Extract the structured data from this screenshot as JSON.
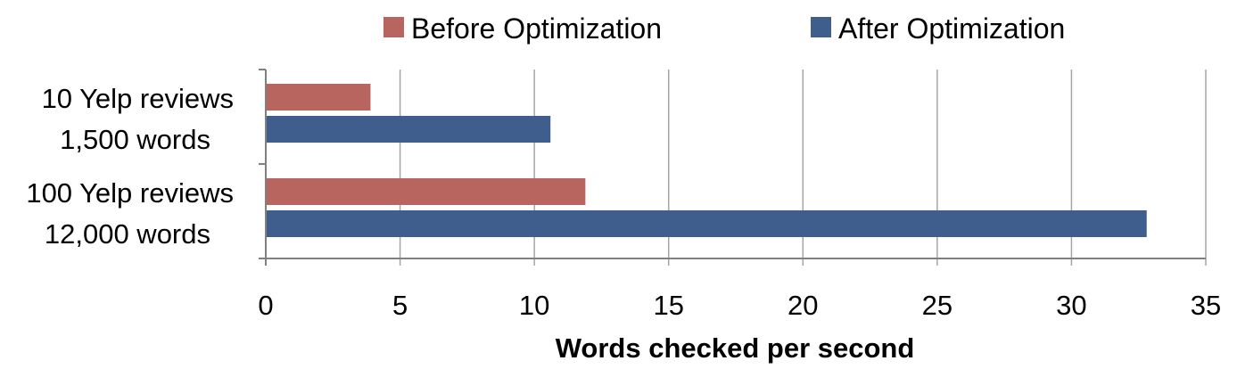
{
  "chart_data": {
    "type": "bar",
    "orientation": "horizontal",
    "title": "",
    "xlabel": "Words checked per second",
    "ylabel": "",
    "categories": [
      [
        "10 Yelp reviews",
        "1,500 words"
      ],
      [
        "100 Yelp reviews",
        "12,000 words"
      ]
    ],
    "series": [
      {
        "name": "Before Optimization",
        "color": "#b9655f",
        "values": [
          3.9,
          11.9
        ]
      },
      {
        "name": "After Optimization",
        "color": "#3f5e8e",
        "values": [
          10.6,
          32.8
        ]
      }
    ],
    "xlim": [
      0,
      35
    ],
    "xticks": [
      "0",
      "5",
      "10",
      "15",
      "20",
      "25",
      "30",
      "35"
    ],
    "grid": true,
    "legend_position": "top"
  }
}
